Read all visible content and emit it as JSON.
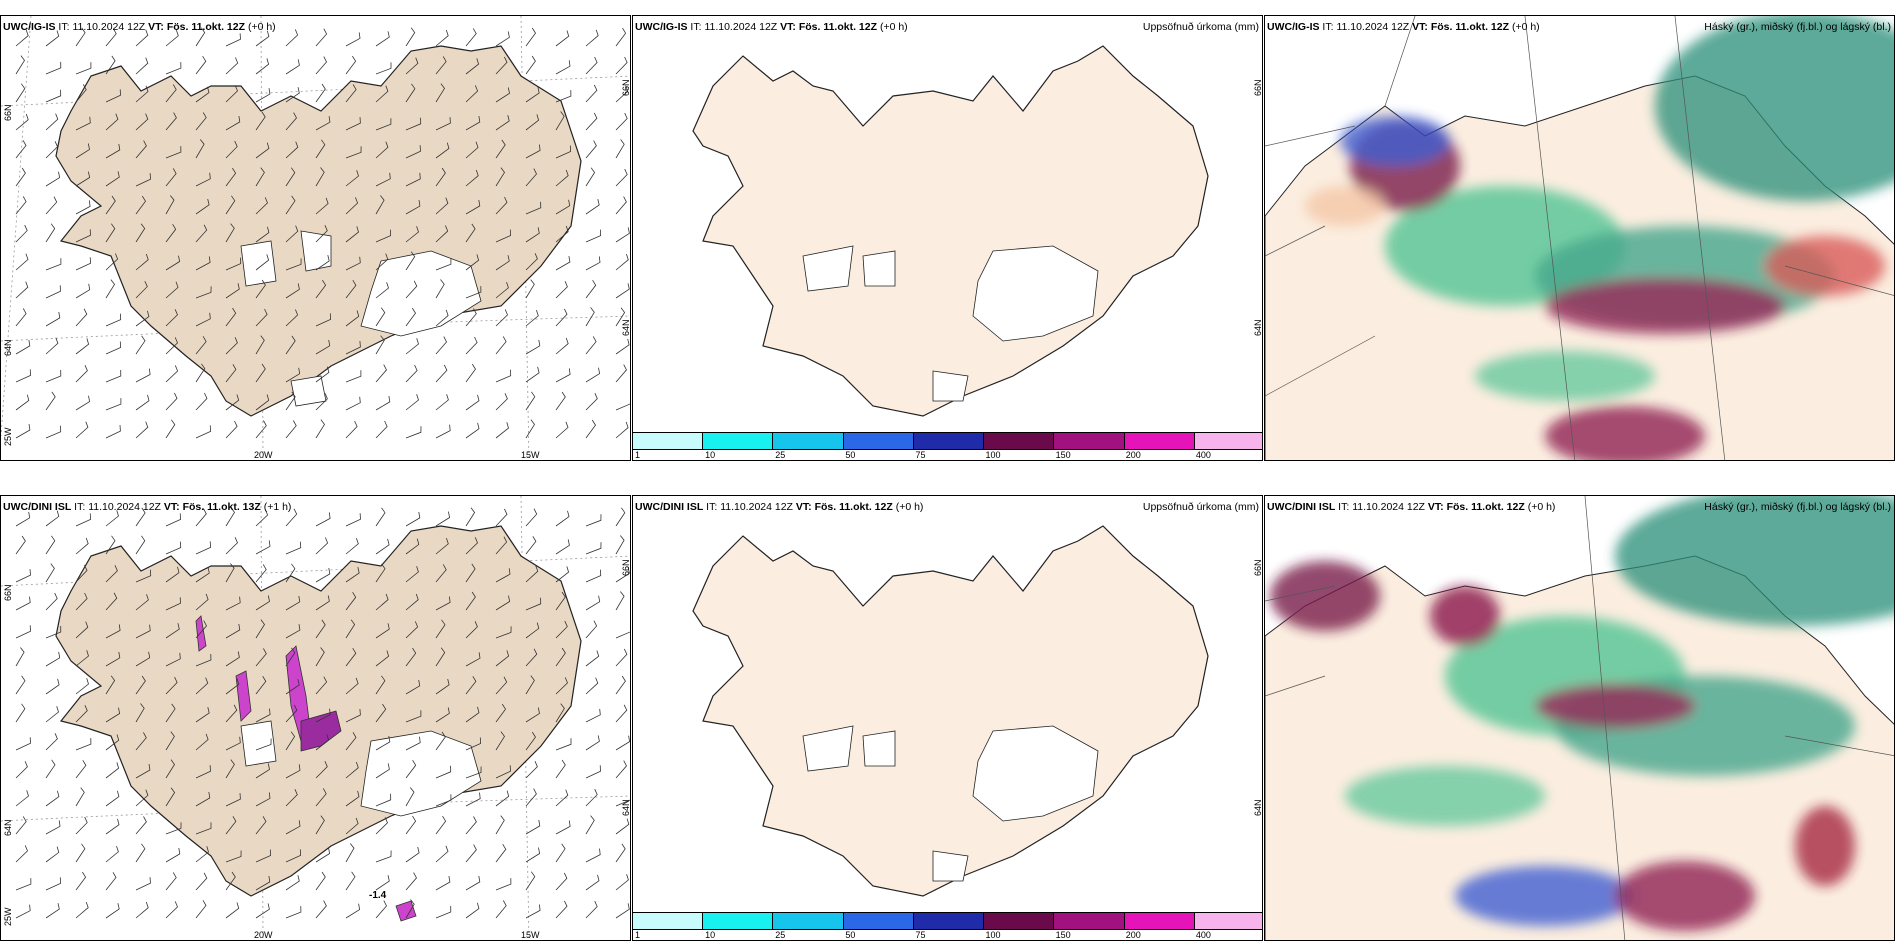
{
  "colors": {
    "land_top_left": "#e9d9c4",
    "land_middle": "#fbeee0",
    "coast": "#222222",
    "precip_scale": [
      "#c8fbfb",
      "#19f0f0",
      "#17c4ec",
      "#2b68e8",
      "#1f2ba8",
      "#6a0a4a",
      "#a1117f",
      "#e514b8",
      "#f7b4ec"
    ]
  },
  "rows": [
    {
      "model": "UWC/IG-IS",
      "panels": [
        {
          "model": "UWC/IG-IS",
          "it_label": "IT:",
          "it": "11.10.2024 12Z",
          "vt_label": "VT:",
          "vt": "Fös. 11.okt. 12Z",
          "lead": "(+0 h)",
          "right_title": ""
        },
        {
          "model": "UWC/IG-IS",
          "it_label": "IT:",
          "it": "11.10.2024 12Z",
          "vt_label": "VT:",
          "vt": "Fös. 11.okt. 12Z",
          "lead": "(+0 h)",
          "right_title": "Uppsöfnuð úrkoma (mm)"
        },
        {
          "model": "UWC/IG-IS",
          "it_label": "IT:",
          "it": "11.10.2024 12Z",
          "vt_label": "VT:",
          "vt": "Fös. 11.okt. 12Z",
          "lead": "(+0 h)",
          "right_title": "Háský (gr.), miðský (fj.bl.) og lágský (bl.)"
        }
      ]
    },
    {
      "model": "UWC/DINI ISL",
      "panels": [
        {
          "model": "UWC/DINI ISL",
          "it_label": "IT:",
          "it": "11.10.2024 12Z",
          "vt_label": "VT:",
          "vt": "Fös. 11.okt. 13Z",
          "lead": "(+1 h)",
          "right_title": ""
        },
        {
          "model": "UWC/DINI ISL",
          "it_label": "IT:",
          "it": "11.10.2024 12Z",
          "vt_label": "VT:",
          "vt": "Fös. 11.okt. 12Z",
          "lead": "(+0 h)",
          "right_title": "Uppsöfnuð úrkoma (mm)"
        },
        {
          "model": "UWC/DINI ISL",
          "it_label": "IT:",
          "it": "11.10.2024 12Z",
          "vt_label": "VT:",
          "vt": "Fös. 11.okt. 12Z",
          "lead": "(+0 h)",
          "right_title": "Háský (gr.), miðský (fj.bl.) og lágský (bl.)"
        }
      ]
    }
  ],
  "grid_labels": {
    "lon_20": "20W",
    "lon_15": "15W",
    "lat_66": "66N",
    "lat_64": "64N",
    "lon_25": "25W"
  },
  "precip_ticks": [
    "1",
    "10",
    "25",
    "50",
    "75",
    "100",
    "150",
    "200",
    "400"
  ],
  "annotation_value": "-1.4"
}
